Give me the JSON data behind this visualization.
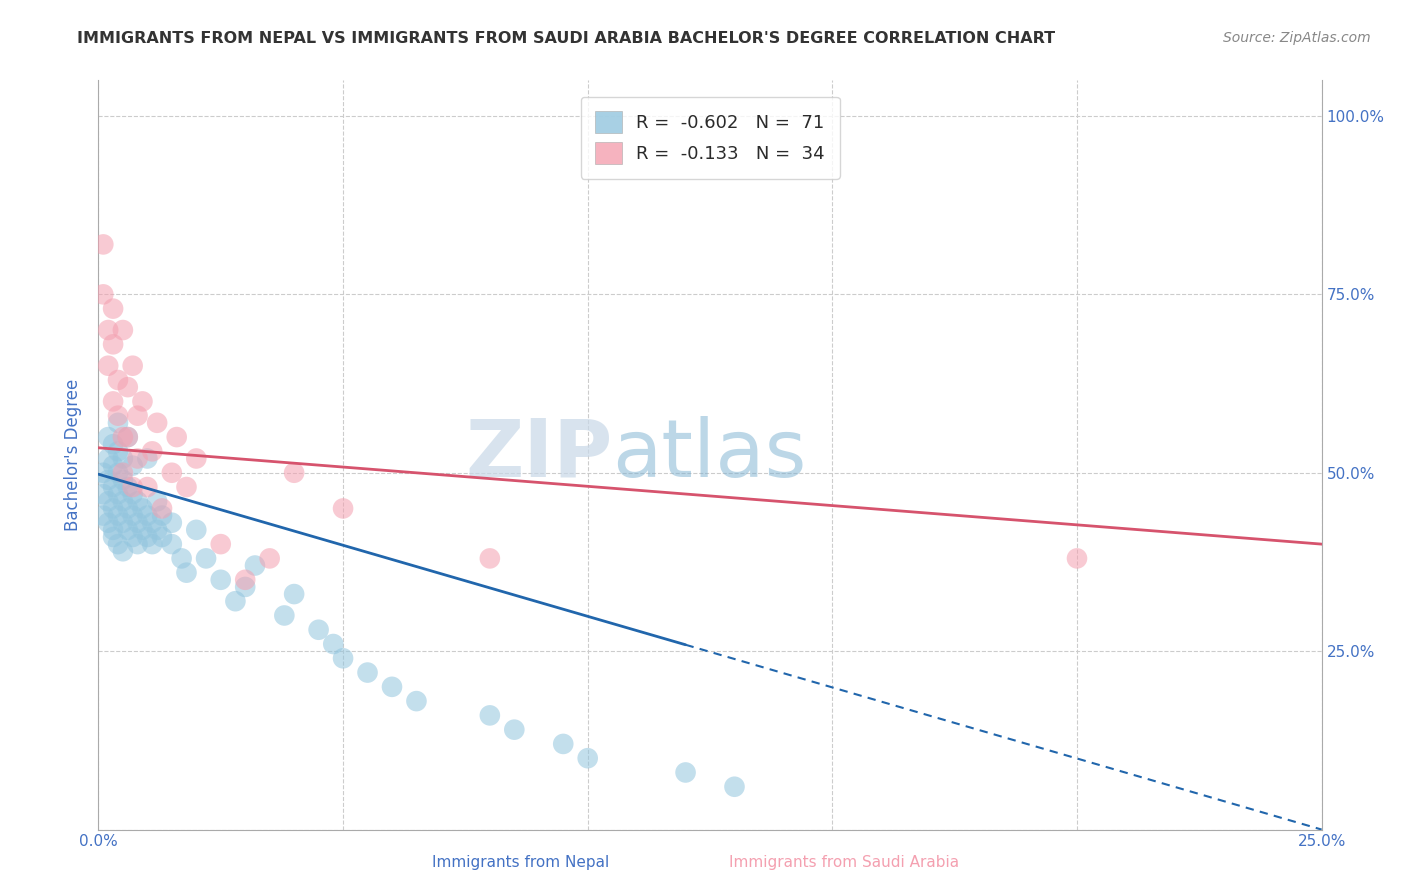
{
  "title": "IMMIGRANTS FROM NEPAL VS IMMIGRANTS FROM SAUDI ARABIA BACHELOR'S DEGREE CORRELATION CHART",
  "source": "Source: ZipAtlas.com",
  "xlabel_nepal": "Immigrants from Nepal",
  "xlabel_saudi": "Immigrants from Saudi Arabia",
  "ylabel": "Bachelor's Degree",
  "watermark_zip": "ZIP",
  "watermark_atlas": "atlas",
  "legend_r_nepal": "-0.602",
  "legend_n_nepal": "71",
  "legend_r_saudi": "-0.133",
  "legend_n_saudi": "34",
  "xlim": [
    0.0,
    0.25
  ],
  "ylim": [
    0.0,
    1.05
  ],
  "nepal_color": "#92c5de",
  "saudi_color": "#f4a0b0",
  "nepal_line_color": "#2166ac",
  "saudi_line_color": "#d6536d",
  "nepal_scatter_x": [
    0.001,
    0.001,
    0.001,
    0.002,
    0.002,
    0.002,
    0.002,
    0.002,
    0.003,
    0.003,
    0.003,
    0.003,
    0.003,
    0.003,
    0.004,
    0.004,
    0.004,
    0.004,
    0.004,
    0.004,
    0.005,
    0.005,
    0.005,
    0.005,
    0.005,
    0.006,
    0.006,
    0.006,
    0.006,
    0.007,
    0.007,
    0.007,
    0.007,
    0.008,
    0.008,
    0.008,
    0.009,
    0.009,
    0.01,
    0.01,
    0.01,
    0.011,
    0.011,
    0.012,
    0.012,
    0.013,
    0.013,
    0.015,
    0.015,
    0.017,
    0.018,
    0.02,
    0.022,
    0.025,
    0.028,
    0.03,
    0.032,
    0.038,
    0.04,
    0.045,
    0.048,
    0.05,
    0.055,
    0.06,
    0.065,
    0.08,
    0.085,
    0.095,
    0.1,
    0.12,
    0.13
  ],
  "nepal_scatter_y": [
    0.5,
    0.47,
    0.44,
    0.52,
    0.49,
    0.46,
    0.43,
    0.55,
    0.51,
    0.48,
    0.45,
    0.42,
    0.54,
    0.41,
    0.5,
    0.47,
    0.44,
    0.53,
    0.4,
    0.57,
    0.49,
    0.46,
    0.43,
    0.52,
    0.39,
    0.48,
    0.45,
    0.42,
    0.55,
    0.47,
    0.44,
    0.41,
    0.51,
    0.46,
    0.43,
    0.4,
    0.45,
    0.42,
    0.44,
    0.41,
    0.52,
    0.43,
    0.4,
    0.42,
    0.46,
    0.41,
    0.44,
    0.4,
    0.43,
    0.38,
    0.36,
    0.42,
    0.38,
    0.35,
    0.32,
    0.34,
    0.37,
    0.3,
    0.33,
    0.28,
    0.26,
    0.24,
    0.22,
    0.2,
    0.18,
    0.16,
    0.14,
    0.12,
    0.1,
    0.08,
    0.06
  ],
  "saudi_scatter_x": [
    0.001,
    0.001,
    0.002,
    0.002,
    0.003,
    0.003,
    0.003,
    0.004,
    0.004,
    0.005,
    0.005,
    0.005,
    0.006,
    0.006,
    0.007,
    0.007,
    0.008,
    0.008,
    0.009,
    0.01,
    0.011,
    0.012,
    0.013,
    0.015,
    0.016,
    0.018,
    0.02,
    0.025,
    0.03,
    0.035,
    0.04,
    0.05,
    0.08,
    0.2
  ],
  "saudi_scatter_y": [
    0.75,
    0.82,
    0.7,
    0.65,
    0.68,
    0.6,
    0.73,
    0.58,
    0.63,
    0.55,
    0.7,
    0.5,
    0.62,
    0.55,
    0.65,
    0.48,
    0.58,
    0.52,
    0.6,
    0.48,
    0.53,
    0.57,
    0.45,
    0.5,
    0.55,
    0.48,
    0.52,
    0.4,
    0.35,
    0.38,
    0.5,
    0.45,
    0.38,
    0.38
  ],
  "nepal_trendline": [
    0.498,
    0.0
  ],
  "saudi_trendline": [
    0.535,
    0.4
  ],
  "yticks": [
    0.0,
    0.25,
    0.5,
    0.75,
    1.0
  ],
  "ytick_labels_right": [
    "",
    "25.0%",
    "50.0%",
    "75.0%",
    "100.0%"
  ],
  "xticks": [
    0.0,
    0.05,
    0.1,
    0.15,
    0.2,
    0.25
  ],
  "xtick_labels": [
    "0.0%",
    "",
    "",
    "",
    "",
    "25.0%"
  ],
  "grid_color": "#cccccc",
  "title_color": "#333333",
  "axis_label_color": "#4472c4",
  "tick_label_color": "#4472c4",
  "source_color": "#888888"
}
